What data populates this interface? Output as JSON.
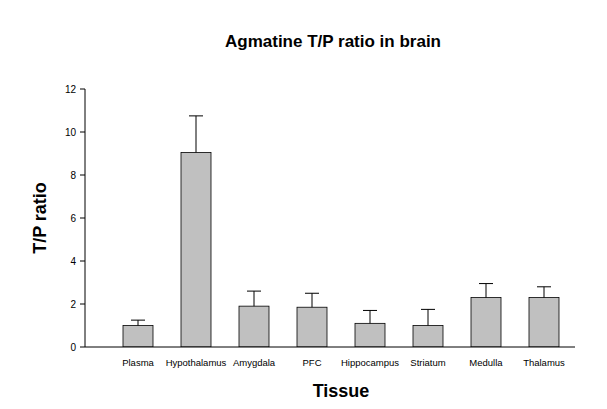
{
  "chart_data": {
    "type": "bar",
    "title": "Agmatine T/P ratio in brain",
    "x_label": "Tissue",
    "y_label": "T/P ratio",
    "categories": [
      "Plasma",
      "Hypothalamus",
      "Amygdala",
      "PFC",
      "Hippocampus",
      "Striatum",
      "Medulla",
      "Thalamus"
    ],
    "values": [
      1.0,
      9.05,
      1.9,
      1.85,
      1.1,
      1.0,
      2.3,
      2.3
    ],
    "errors": [
      0.25,
      1.7,
      0.7,
      0.65,
      0.6,
      0.75,
      0.65,
      0.5
    ],
    "color": "#c0c0c0",
    "ylim": [
      0,
      12
    ],
    "yticks": [
      0,
      2,
      4,
      6,
      8,
      10,
      12
    ],
    "grid": false
  }
}
